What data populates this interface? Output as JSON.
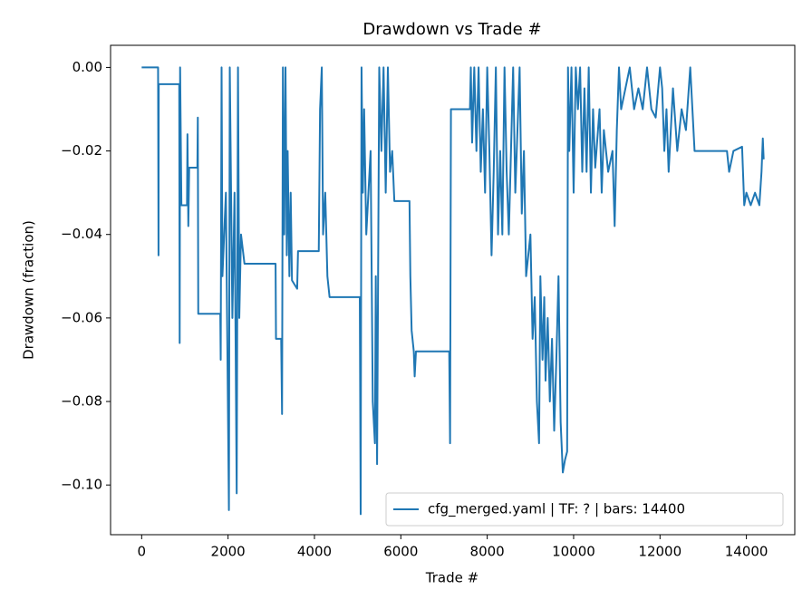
{
  "chart_data": {
    "type": "line",
    "title": "Drawdown vs Trade #",
    "xlabel": "Trade #",
    "ylabel": "Drawdown (fraction)",
    "xlim": [
      -720,
      15120
    ],
    "ylim": [
      -0.1119,
      0.0053
    ],
    "xticks": [
      0,
      2000,
      4000,
      6000,
      8000,
      10000,
      12000,
      14000
    ],
    "yticks": [
      {
        "value": 0,
        "label": "0.00"
      },
      {
        "value": -0.02,
        "label": "−0.02"
      },
      {
        "value": -0.04,
        "label": "−0.04"
      },
      {
        "value": -0.06,
        "label": "−0.06"
      },
      {
        "value": -0.08,
        "label": "−0.08"
      },
      {
        "value": -0.1,
        "label": "−0.10"
      }
    ],
    "legend": "lower right",
    "grid": false,
    "x": [
      0,
      380,
      390,
      395,
      870,
      880,
      890,
      900,
      920,
      1050,
      1060,
      1080,
      1100,
      1290,
      1300,
      1310,
      1820,
      1830,
      1850,
      1870,
      1950,
      2020,
      2040,
      2100,
      2150,
      2200,
      2230,
      2260,
      2300,
      2380,
      3100,
      3110,
      3230,
      3250,
      3270,
      3300,
      3330,
      3360,
      3380,
      3420,
      3450,
      3480,
      3600,
      3620,
      4100,
      4130,
      4170,
      4200,
      4250,
      4300,
      4350,
      5050,
      5070,
      5090,
      5120,
      5150,
      5200,
      5300,
      5350,
      5400,
      5420,
      5450,
      5500,
      5550,
      5600,
      5650,
      5700,
      5750,
      5800,
      5850,
      6200,
      6220,
      6250,
      6300,
      6320,
      6350,
      7120,
      7140,
      7160,
      7600,
      7620,
      7650,
      7700,
      7750,
      7800,
      7850,
      7900,
      7950,
      8000,
      8050,
      8100,
      8150,
      8200,
      8250,
      8300,
      8350,
      8400,
      8450,
      8500,
      8550,
      8600,
      8650,
      8700,
      8750,
      8800,
      8850,
      8900,
      9000,
      9050,
      9100,
      9150,
      9200,
      9230,
      9280,
      9320,
      9350,
      9400,
      9450,
      9500,
      9550,
      9600,
      9650,
      9700,
      9750,
      9800,
      9850,
      9870,
      9900,
      9950,
      10000,
      10050,
      10100,
      10150,
      10200,
      10250,
      10300,
      10350,
      10400,
      10450,
      10500,
      10600,
      10650,
      10700,
      10800,
      10900,
      10950,
      11000,
      11050,
      11100,
      11200,
      11300,
      11400,
      11500,
      11600,
      11700,
      11800,
      11900,
      12000,
      12050,
      12100,
      12150,
      12200,
      12300,
      12400,
      12500,
      12600,
      12700,
      12750,
      12800,
      13550,
      13600,
      13700,
      13900,
      13950,
      14000,
      14100,
      14200,
      14300,
      14350,
      14380,
      14400
    ],
    "series": [
      {
        "name": "cfg_merged.yaml | TF: ? | bars: 14400",
        "color": "#1f77b4",
        "values": [
          0,
          0,
          -0.045,
          -0.004,
          -0.004,
          -0.066,
          0,
          -0.011,
          -0.033,
          -0.033,
          -0.016,
          -0.038,
          -0.024,
          -0.024,
          -0.012,
          -0.059,
          -0.059,
          -0.07,
          0,
          -0.05,
          -0.03,
          -0.106,
          0,
          -0.06,
          -0.03,
          -0.102,
          0,
          -0.06,
          -0.04,
          -0.047,
          -0.047,
          -0.065,
          -0.065,
          -0.083,
          0,
          -0.04,
          0,
          -0.045,
          -0.02,
          -0.05,
          -0.03,
          -0.051,
          -0.053,
          -0.044,
          -0.044,
          -0.01,
          0,
          -0.04,
          -0.03,
          -0.05,
          -0.055,
          -0.055,
          -0.107,
          0,
          -0.03,
          -0.01,
          -0.04,
          -0.02,
          -0.08,
          -0.09,
          -0.05,
          -0.095,
          0,
          -0.02,
          0,
          -0.03,
          0,
          -0.025,
          -0.02,
          -0.032,
          -0.032,
          -0.05,
          -0.063,
          -0.068,
          -0.074,
          -0.068,
          -0.068,
          -0.09,
          -0.01,
          -0.01,
          0,
          -0.018,
          0,
          -0.02,
          0,
          -0.025,
          -0.01,
          -0.03,
          0,
          -0.02,
          -0.045,
          -0.025,
          0,
          -0.04,
          -0.02,
          -0.04,
          0,
          -0.025,
          -0.04,
          -0.02,
          0,
          -0.03,
          -0.015,
          0,
          -0.035,
          -0.02,
          -0.05,
          -0.04,
          -0.065,
          -0.055,
          -0.08,
          -0.09,
          -0.05,
          -0.07,
          -0.055,
          -0.075,
          -0.06,
          -0.08,
          -0.065,
          -0.087,
          -0.07,
          -0.05,
          -0.085,
          -0.097,
          -0.094,
          -0.092,
          0,
          -0.02,
          0,
          -0.03,
          0,
          -0.01,
          0,
          -0.025,
          -0.005,
          -0.025,
          0,
          -0.03,
          -0.01,
          -0.024,
          -0.01,
          -0.03,
          -0.015,
          -0.025,
          -0.02,
          -0.038,
          -0.015,
          0,
          -0.01,
          -0.005,
          0,
          -0.01,
          -0.005,
          -0.01,
          0,
          -0.01,
          -0.012,
          0,
          -0.005,
          -0.02,
          -0.01,
          -0.025,
          -0.005,
          -0.02,
          -0.01,
          -0.015,
          0,
          -0.01,
          -0.02,
          -0.02,
          -0.025,
          -0.02,
          -0.019,
          -0.033,
          -0.03,
          -0.033,
          -0.03,
          -0.033,
          -0.025,
          -0.017,
          -0.022
        ]
      }
    ]
  }
}
